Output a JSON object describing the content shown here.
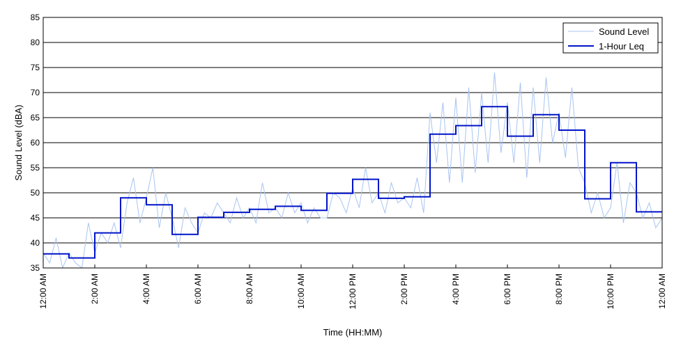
{
  "chart_data": {
    "type": "line",
    "xlabel": "Time (HH:MM)",
    "ylabel": "Sound Level (dBA)",
    "ylim": [
      35,
      85
    ],
    "yticks": [
      35,
      40,
      45,
      50,
      55,
      60,
      65,
      70,
      75,
      80,
      85
    ],
    "xlim_hours": [
      0,
      24
    ],
    "xticks": [
      {
        "hour": 0,
        "label": "12:00 AM"
      },
      {
        "hour": 2,
        "label": "2:00 AM"
      },
      {
        "hour": 4,
        "label": "4:00 AM"
      },
      {
        "hour": 6,
        "label": "6:00 AM"
      },
      {
        "hour": 8,
        "label": "8:00 AM"
      },
      {
        "hour": 10,
        "label": "10:00 AM"
      },
      {
        "hour": 12,
        "label": "12:00 PM"
      },
      {
        "hour": 14,
        "label": "2:00 PM"
      },
      {
        "hour": 16,
        "label": "4:00 PM"
      },
      {
        "hour": 18,
        "label": "6:00 PM"
      },
      {
        "hour": 20,
        "label": "8:00 PM"
      },
      {
        "hour": 22,
        "label": "10:00 PM"
      },
      {
        "hour": 24,
        "label": "12:00 AM"
      }
    ],
    "grid": "horizontal",
    "legend_position": "top-right",
    "series": [
      {
        "name": "Sound Level",
        "color": "#a8c4f0",
        "x_hours": [
          0,
          0.25,
          0.5,
          0.75,
          1,
          1.25,
          1.5,
          1.75,
          2,
          2.25,
          2.5,
          2.75,
          3,
          3.25,
          3.5,
          3.75,
          4,
          4.25,
          4.5,
          4.75,
          5,
          5.25,
          5.5,
          5.75,
          6,
          6.25,
          6.5,
          6.75,
          7,
          7.25,
          7.5,
          7.75,
          8,
          8.25,
          8.5,
          8.75,
          9,
          9.25,
          9.5,
          9.75,
          10,
          10.25,
          10.5,
          10.75,
          11,
          11.25,
          11.5,
          11.75,
          12,
          12.25,
          12.5,
          12.75,
          13,
          13.25,
          13.5,
          13.75,
          14,
          14.25,
          14.5,
          14.75,
          15,
          15.25,
          15.5,
          15.75,
          16,
          16.25,
          16.5,
          16.75,
          17,
          17.25,
          17.5,
          17.75,
          18,
          18.25,
          18.5,
          18.75,
          19,
          19.25,
          19.5,
          19.75,
          20,
          20.25,
          20.5,
          20.75,
          21,
          21.25,
          21.5,
          21.75,
          22,
          22.25,
          22.5,
          22.75,
          23,
          23.25,
          23.5,
          23.75,
          24
        ],
        "values": [
          38,
          36,
          41,
          35,
          38,
          36,
          35,
          44,
          38,
          42,
          40,
          44,
          39,
          48,
          53,
          44,
          49,
          55,
          43,
          50,
          45,
          39,
          47,
          44,
          42,
          46,
          45,
          48,
          46,
          44,
          49,
          45,
          47,
          44,
          52,
          46,
          47,
          45,
          50,
          46,
          48,
          44,
          47,
          45,
          45,
          50,
          49,
          46,
          51,
          47,
          55,
          48,
          50,
          46,
          52,
          48,
          49,
          47,
          53,
          46,
          66,
          56,
          68,
          52,
          69,
          52,
          71,
          54,
          70,
          56,
          74,
          58,
          68,
          56,
          72,
          53,
          71,
          56,
          73,
          60,
          66,
          57,
          71,
          55,
          52,
          46,
          50,
          45,
          47,
          56,
          44,
          52,
          50,
          45,
          48,
          43,
          45
        ]
      },
      {
        "name": "1-Hour Leq",
        "color": "#0014c8",
        "step_hours": [
          0,
          1,
          2,
          3,
          4,
          5,
          6,
          7,
          8,
          9,
          10,
          11,
          12,
          13,
          14,
          15,
          16,
          17,
          18,
          19,
          20,
          21,
          22,
          23
        ],
        "values": [
          37.8,
          37.0,
          42.0,
          49.0,
          47.6,
          41.7,
          45.1,
          46.1,
          46.7,
          47.3,
          46.5,
          49.9,
          52.7,
          48.9,
          49.2,
          61.7,
          63.4,
          67.2,
          61.3,
          65.6,
          62.5,
          48.8,
          56.0,
          46.2
        ]
      }
    ]
  }
}
